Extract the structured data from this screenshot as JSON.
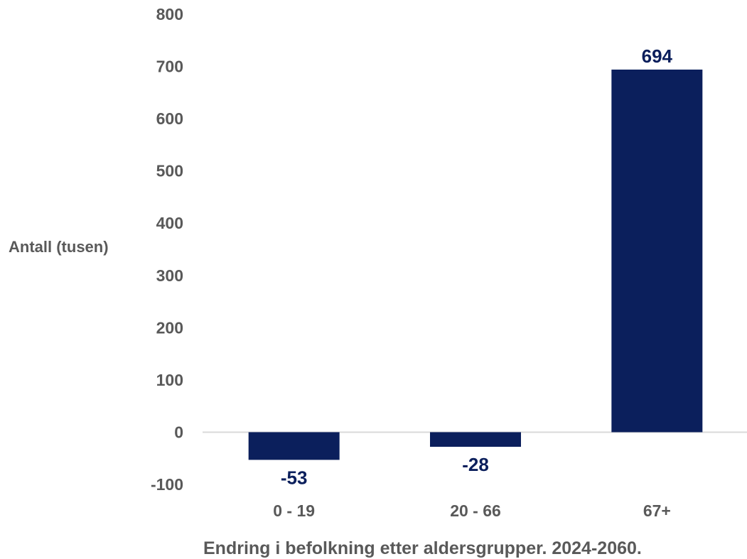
{
  "chart_data": {
    "type": "bar",
    "categories": [
      "0 - 19",
      "20 - 66",
      "67+"
    ],
    "values": [
      -53,
      -28,
      694
    ],
    "data_labels": [
      "-53",
      "-28",
      "694"
    ],
    "title": "Endring i befolkning etter aldersgrupper. 2024-2060.",
    "xlabel": "",
    "ylabel": "Antall (tusen)",
    "ylim": [
      -100,
      800
    ],
    "yticks": [
      800,
      700,
      600,
      500,
      400,
      300,
      200,
      100,
      0,
      -100
    ],
    "grid": false,
    "legend": "none",
    "colors": {
      "bar": "#0b1f5c",
      "data_label": "#0b1f5c",
      "zero_line": "#d9d9d9",
      "text": "#595959"
    }
  }
}
